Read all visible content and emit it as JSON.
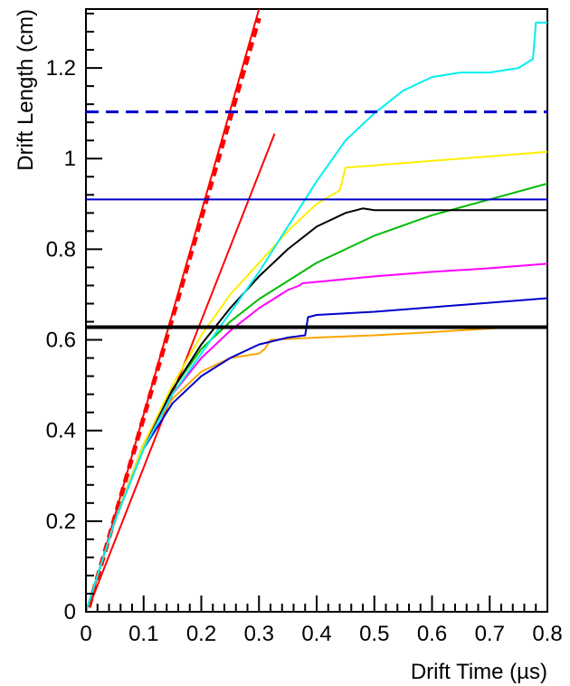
{
  "chart_data": {
    "type": "line",
    "xlabel": "Drift Time (µs)",
    "ylabel": "Drift Length (cm)",
    "xlim": [
      0,
      0.8
    ],
    "ylim": [
      0,
      1.33
    ],
    "x_ticks": [
      0,
      0.1,
      0.2,
      0.3,
      0.4,
      0.5,
      0.6,
      0.7,
      0.8
    ],
    "x_tick_labels": [
      "0",
      "0.1",
      "0.2",
      "0.3",
      "0.4",
      "0.5",
      "0.6",
      "0.7",
      "0.8"
    ],
    "y_ticks": [
      0,
      0.2,
      0.4,
      0.6,
      0.8,
      1.0,
      1.2
    ],
    "y_tick_labels": [
      "0",
      "0.2",
      "0.4",
      "0.6",
      "0.8",
      "1",
      "1.2"
    ],
    "grid": false,
    "legend": "none",
    "reference_lines": [
      {
        "id": "hline-dashed-blue",
        "y": 1.103,
        "color": "#0000cc",
        "style": "dashed"
      },
      {
        "id": "hline-blue",
        "y": 0.91,
        "color": "#0000cc",
        "style": "solid"
      },
      {
        "id": "hline-black",
        "y": 0.628,
        "color": "#000000",
        "style": "solid-thick"
      }
    ],
    "series": [
      {
        "color": "#ff0000",
        "style": "solid",
        "x": [
          0.005,
          0.3
        ],
        "y": [
          0.01,
          1.33
        ]
      },
      {
        "color": "#ff0000",
        "style": "solid",
        "x": [
          0.005,
          0.327
        ],
        "y": [
          0.01,
          1.055
        ]
      },
      {
        "color": "#ff0000",
        "style": "dotted-thick",
        "x": [
          0.005,
          0.3
        ],
        "y": [
          0.01,
          1.31
        ]
      },
      {
        "color": "#ffa500",
        "style": "solid",
        "x": [
          0.0,
          0.05,
          0.1,
          0.15,
          0.2,
          0.25,
          0.3,
          0.31,
          0.32,
          0.4,
          0.5,
          0.6,
          0.7,
          0.75
        ],
        "y": [
          0.0,
          0.2,
          0.37,
          0.47,
          0.53,
          0.56,
          0.57,
          0.58,
          0.6,
          0.605,
          0.61,
          0.617,
          0.625,
          0.628
        ]
      },
      {
        "color": "#0000cc",
        "style": "solid",
        "x": [
          0.0,
          0.05,
          0.1,
          0.15,
          0.2,
          0.25,
          0.3,
          0.35,
          0.38,
          0.385,
          0.4,
          0.5,
          0.6,
          0.7,
          0.8
        ],
        "y": [
          0.0,
          0.2,
          0.36,
          0.46,
          0.52,
          0.56,
          0.59,
          0.605,
          0.61,
          0.65,
          0.655,
          0.662,
          0.672,
          0.682,
          0.692
        ]
      },
      {
        "color": "#ff00ff",
        "style": "solid",
        "x": [
          0.0,
          0.05,
          0.1,
          0.15,
          0.2,
          0.25,
          0.3,
          0.35,
          0.37,
          0.375,
          0.4,
          0.5,
          0.6,
          0.7,
          0.8
        ],
        "y": [
          0.0,
          0.2,
          0.37,
          0.48,
          0.56,
          0.62,
          0.67,
          0.71,
          0.72,
          0.725,
          0.728,
          0.74,
          0.75,
          0.758,
          0.768
        ]
      },
      {
        "color": "#00bb00",
        "style": "solid",
        "x": [
          0.0,
          0.05,
          0.1,
          0.15,
          0.2,
          0.25,
          0.3,
          0.35,
          0.4,
          0.5,
          0.6,
          0.7,
          0.8
        ],
        "y": [
          0.0,
          0.2,
          0.37,
          0.49,
          0.58,
          0.64,
          0.69,
          0.73,
          0.77,
          0.83,
          0.875,
          0.91,
          0.945
        ]
      },
      {
        "color": "#000000",
        "style": "solid",
        "x": [
          0.0,
          0.05,
          0.1,
          0.15,
          0.2,
          0.25,
          0.3,
          0.35,
          0.4,
          0.45,
          0.48,
          0.5,
          0.6,
          0.7,
          0.8
        ],
        "y": [
          0.0,
          0.2,
          0.37,
          0.49,
          0.59,
          0.67,
          0.74,
          0.8,
          0.85,
          0.88,
          0.89,
          0.886,
          0.886,
          0.886,
          0.886
        ]
      },
      {
        "color": "#ffee00",
        "style": "solid",
        "x": [
          0.0,
          0.05,
          0.1,
          0.15,
          0.2,
          0.25,
          0.3,
          0.35,
          0.4,
          0.44,
          0.45,
          0.5,
          0.6,
          0.7,
          0.8
        ],
        "y": [
          0.0,
          0.2,
          0.37,
          0.5,
          0.61,
          0.7,
          0.77,
          0.84,
          0.9,
          0.93,
          0.98,
          0.985,
          0.995,
          1.005,
          1.015
        ]
      },
      {
        "color": "#00eeee",
        "style": "solid",
        "x": [
          0.0,
          0.05,
          0.1,
          0.15,
          0.2,
          0.25,
          0.3,
          0.35,
          0.4,
          0.45,
          0.5,
          0.55,
          0.6,
          0.65,
          0.7,
          0.75,
          0.775,
          0.78,
          0.8
        ],
        "y": [
          0.0,
          0.2,
          0.36,
          0.48,
          0.57,
          0.66,
          0.75,
          0.85,
          0.95,
          1.04,
          1.1,
          1.15,
          1.18,
          1.19,
          1.19,
          1.2,
          1.22,
          1.3,
          1.3
        ]
      }
    ]
  }
}
